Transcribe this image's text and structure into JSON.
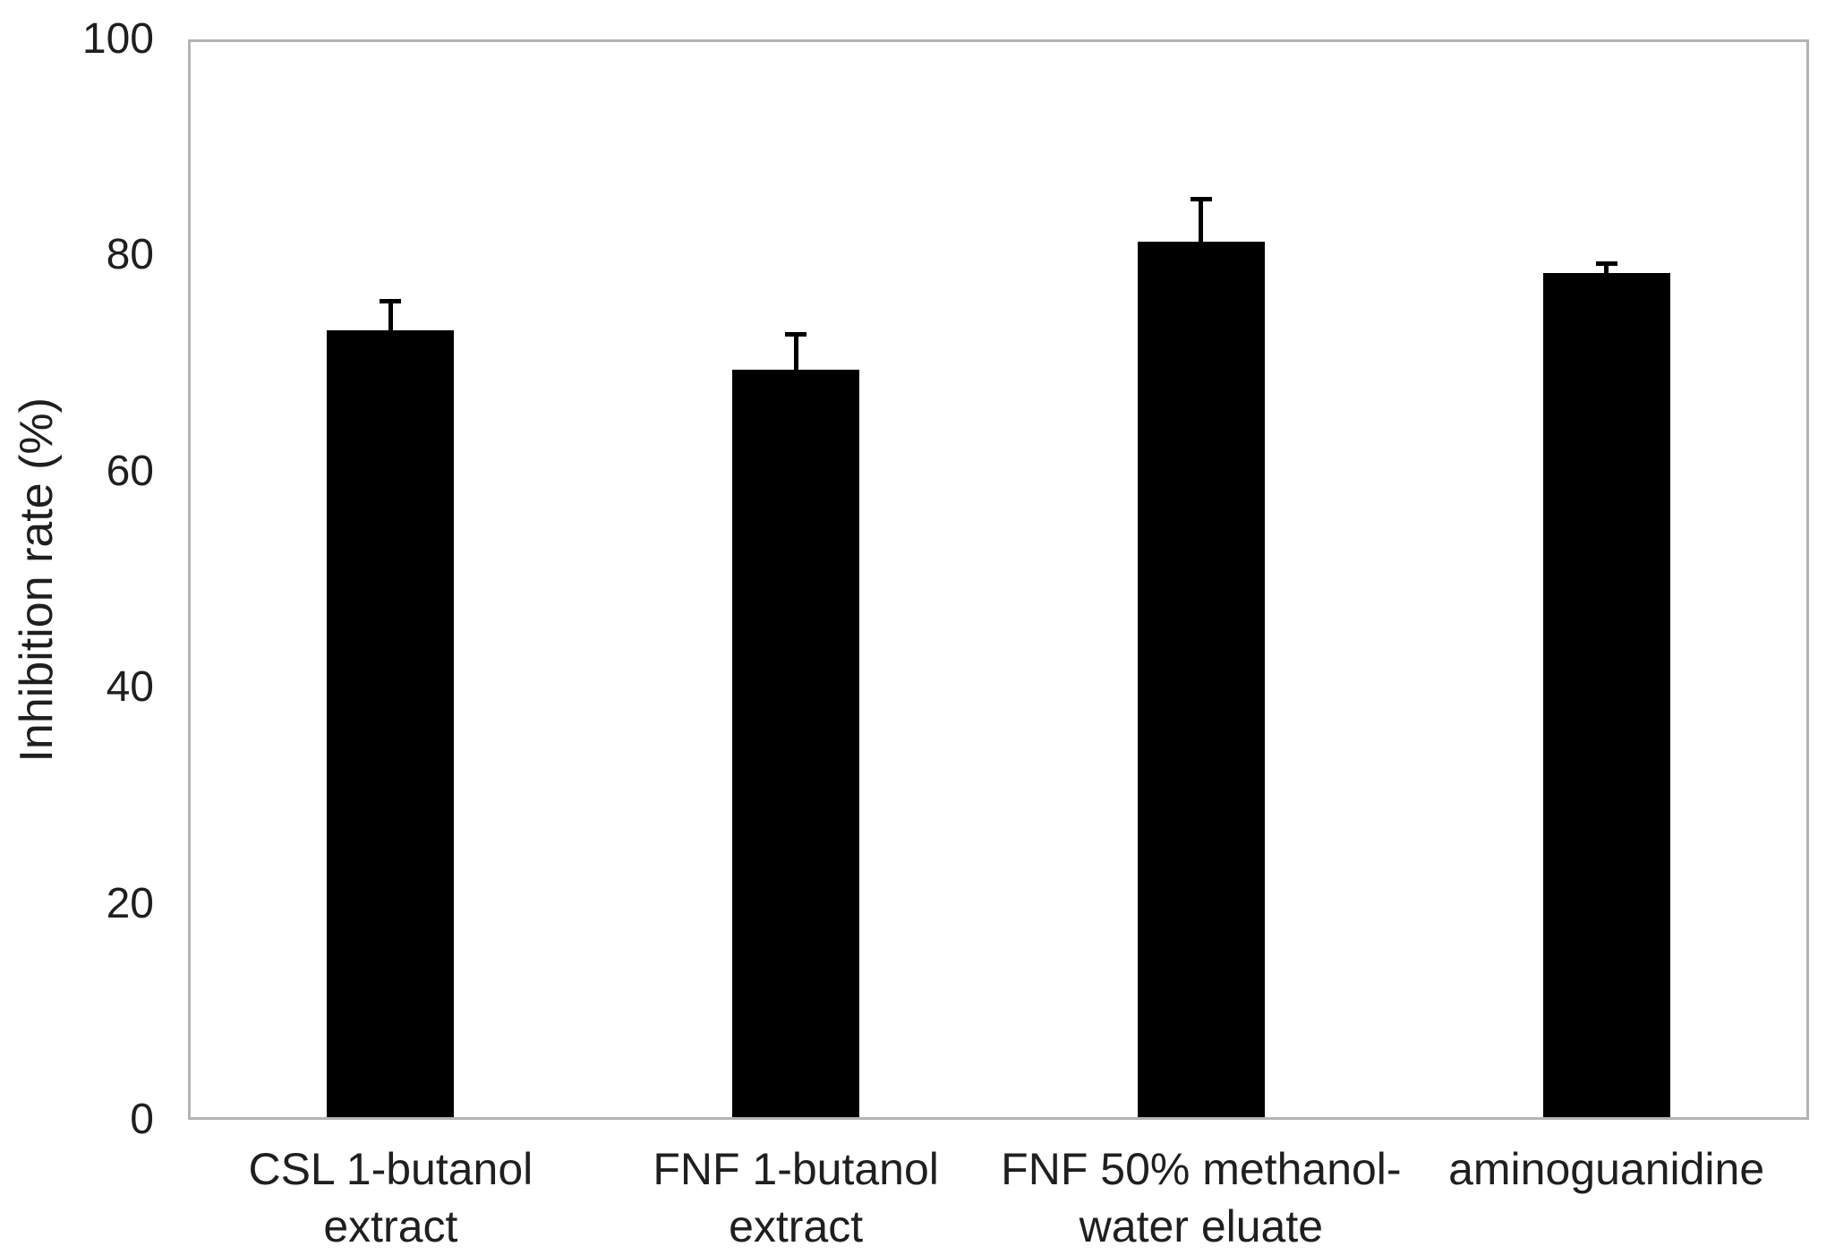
{
  "chart_data": {
    "type": "bar",
    "title": "",
    "xlabel": "",
    "ylabel": "Inhibition rate (%)",
    "ylim": [
      0,
      100
    ],
    "yticks": [
      0,
      20,
      40,
      60,
      80,
      100
    ],
    "grid": false,
    "legend": false,
    "bar_color": "#000000",
    "axis_frame_color": "#b3b3b3",
    "error_bar_color": "#000000",
    "categories": [
      "CSL 1-butanol\nextract",
      "FNF 1-butanol\nextract",
      "FNF 50% methanol-\nwater eluate",
      "aminoguanidine"
    ],
    "series": [
      {
        "name": "Inhibition rate",
        "values": [
          72.8,
          69.2,
          81.0,
          78.1
        ],
        "errors_up": [
          2.9,
          3.5,
          4.2,
          1.1
        ]
      }
    ]
  }
}
